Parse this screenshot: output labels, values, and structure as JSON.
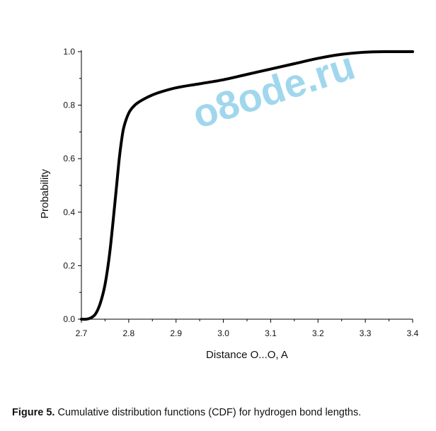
{
  "chart_data": {
    "type": "line",
    "xlabel": "Distance O...O, A",
    "ylabel": "Probability",
    "xlim": [
      2.7,
      3.4
    ],
    "ylim": [
      0.0,
      1.0
    ],
    "x_ticks": [
      "2.7",
      "2.8",
      "2.9",
      "3.0",
      "3.1",
      "3.2",
      "3.3",
      "3.4"
    ],
    "y_ticks": [
      "0.0",
      "0.2",
      "0.4",
      "0.6",
      "0.8",
      "1.0"
    ],
    "grid": false,
    "line_color": "#000000",
    "series": [
      {
        "x": [
          2.7,
          2.71,
          2.72,
          2.73,
          2.74,
          2.75,
          2.76,
          2.77,
          2.775,
          2.78,
          2.785,
          2.79,
          2.8,
          2.81,
          2.82,
          2.84,
          2.86,
          2.9,
          2.95,
          3.0,
          3.05,
          3.1,
          3.15,
          3.2,
          3.25,
          3.3,
          3.35,
          3.4
        ],
        "y": [
          0.0,
          0.0,
          0.005,
          0.02,
          0.06,
          0.13,
          0.25,
          0.42,
          0.51,
          0.6,
          0.67,
          0.72,
          0.77,
          0.795,
          0.81,
          0.83,
          0.845,
          0.865,
          0.88,
          0.895,
          0.915,
          0.935,
          0.955,
          0.975,
          0.99,
          0.998,
          1.0,
          1.0
        ]
      }
    ]
  },
  "watermark": "o8ode.ru",
  "caption": {
    "label": "Figure 5.",
    "text": " Cumulative distribution functions (CDF) for hydrogen bond lengths."
  }
}
